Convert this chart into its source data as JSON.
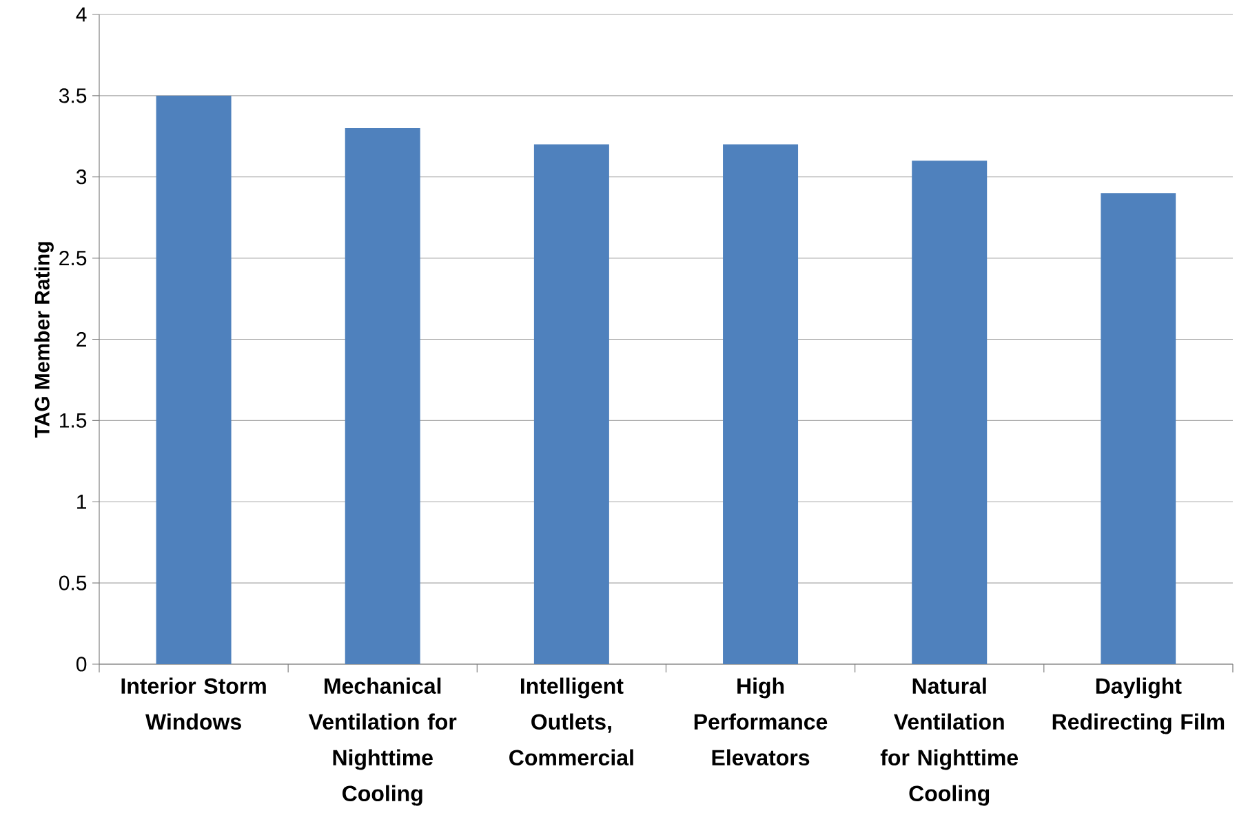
{
  "chart_data": {
    "type": "bar",
    "ylabel": "TAG Member Rating",
    "categories": [
      "Interior Storm Windows",
      "Mechanical Ventilation for Nighttime Cooling",
      "Intelligent Outlets, Commercial",
      "High Performance Elevators",
      "Natural Ventilation for Nighttime Cooling",
      "Daylight Redirecting Film"
    ],
    "values": [
      3.5,
      3.3,
      3.2,
      3.2,
      3.1,
      2.9
    ],
    "color": "#4f81bd",
    "ylim": [
      0,
      4
    ],
    "yticks": [
      0,
      0.5,
      1,
      1.5,
      2,
      2.5,
      3,
      3.5,
      4
    ],
    "grid": "y"
  }
}
